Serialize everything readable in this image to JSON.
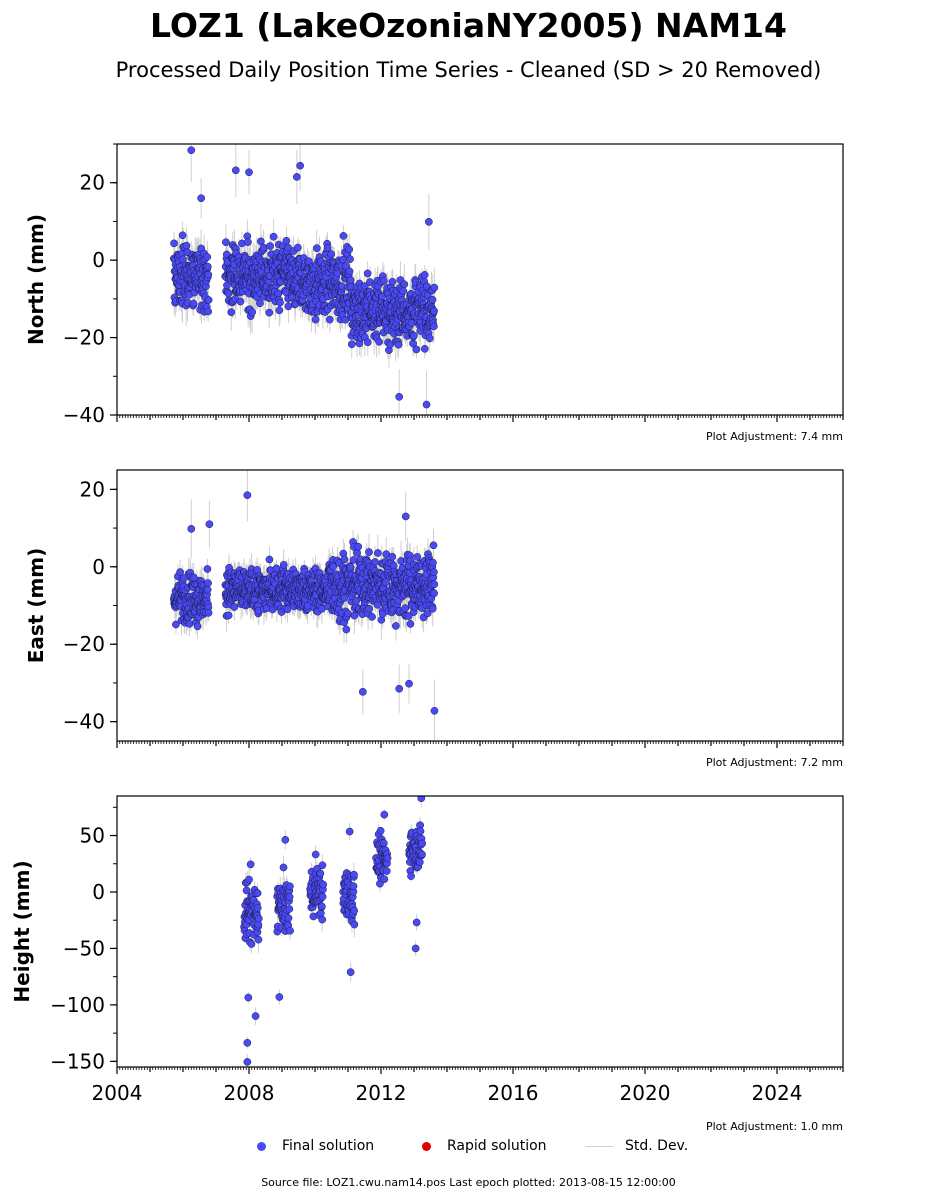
{
  "title": "LOZ1 (LakeOzoniaNY2005) NAM14",
  "subtitle": "Processed Daily Position Time Series - Cleaned (SD > 20 Removed)",
  "footer": "Source file: LOZ1.cwu.nam14.pos  Last epoch plotted: 2013-08-15 12:00:00",
  "legend": {
    "final_label": "Final solution",
    "rapid_label": "Rapid solution",
    "std_label": "Std. Dev.",
    "final_color": "#4a4af5",
    "rapid_color": "#dd0000",
    "std_color": "#cfcfcf"
  },
  "chart_data": [
    {
      "type": "scatter",
      "ylabel": "North (mm)",
      "adjustment": "Plot Adjustment: 7.4 mm",
      "xlim": [
        2004,
        2026
      ],
      "ylim": [
        -40,
        30
      ],
      "yticks": [
        20,
        0,
        -20,
        -40
      ],
      "ytick_labels": [
        "20",
        "0",
        "−20",
        "−40"
      ],
      "series": [
        {
          "segments": [
            {
              "x": [
                2005.72,
                2006.78
              ],
              "mean": -4,
              "spread": 6
            },
            {
              "x": [
                2007.28,
                2009.3
              ],
              "mean": -4,
              "spread": 6
            },
            {
              "x": [
                2009.3,
                2011.1
              ],
              "mean": -6,
              "spread": 6
            },
            {
              "x": [
                2011.1,
                2013.62
              ],
              "mean": -13,
              "spread": 6
            }
          ],
          "outliers": [
            {
              "x": 2006.25,
              "y": 28.4
            },
            {
              "x": 2007.6,
              "y": 23.2
            },
            {
              "x": 2008.0,
              "y": 22.7
            },
            {
              "x": 2009.55,
              "y": 24.4
            },
            {
              "x": 2009.45,
              "y": 21.5
            },
            {
              "x": 2013.45,
              "y": 9.9
            },
            {
              "x": 2013.38,
              "y": -37.3
            },
            {
              "x": 2012.55,
              "y": -35.3
            },
            {
              "x": 2006.55,
              "y": 16.0
            }
          ]
        }
      ]
    },
    {
      "type": "scatter",
      "ylabel": "East (mm)",
      "adjustment": "Plot Adjustment: 7.2 mm",
      "xlim": [
        2004,
        2026
      ],
      "ylim": [
        -45,
        25
      ],
      "yticks": [
        20,
        0,
        -20,
        -40
      ],
      "ytick_labels": [
        "20",
        "0",
        "−20",
        "−40"
      ],
      "series": [
        {
          "segments": [
            {
              "x": [
                2005.72,
                2006.78
              ],
              "mean": -8,
              "spread": 4.5
            },
            {
              "x": [
                2007.28,
                2010.4
              ],
              "mean": -6,
              "spread": 4
            },
            {
              "x": [
                2010.4,
                2013.62
              ],
              "mean": -5,
              "spread": 6
            }
          ],
          "outliers": [
            {
              "x": 2007.95,
              "y": 18.5
            },
            {
              "x": 2006.8,
              "y": 11.0
            },
            {
              "x": 2006.25,
              "y": 9.8
            },
            {
              "x": 2012.75,
              "y": 13.0
            },
            {
              "x": 2013.62,
              "y": -37.2
            },
            {
              "x": 2011.45,
              "y": -32.3
            },
            {
              "x": 2012.85,
              "y": -30.2
            },
            {
              "x": 2012.55,
              "y": -31.5
            }
          ]
        }
      ]
    },
    {
      "type": "scatter",
      "ylabel": "Height (mm)",
      "adjustment": "Plot Adjustment: 1.0 mm",
      "xlim": [
        2004,
        2026
      ],
      "xticks": [
        2004,
        2008,
        2012,
        2016,
        2020,
        2024
      ],
      "xtick_labels": [
        "2004",
        "2008",
        "2012",
        "2016",
        "2020",
        "2024"
      ],
      "ylim": [
        -155,
        85
      ],
      "yticks": [
        50,
        0,
        -50,
        -100,
        -150
      ],
      "ytick_labels": [
        "50",
        "0",
        "−50",
        "−100",
        "−150"
      ],
      "series": [
        {
          "segments": [
            {
              "x": [
                2007.85,
                2008.3
              ],
              "mean": -20,
              "spread": 18
            },
            {
              "x": [
                2008.85,
                2009.25
              ],
              "mean": -12,
              "spread": 18
            },
            {
              "x": [
                2009.85,
                2010.25
              ],
              "mean": 0,
              "spread": 16
            },
            {
              "x": [
                2010.85,
                2011.2
              ],
              "mean": -5,
              "spread": 18
            },
            {
              "x": [
                2011.85,
                2012.2
              ],
              "mean": 28,
              "spread": 14
            },
            {
              "x": [
                2012.85,
                2013.25
              ],
              "mean": 40,
              "spread": 14
            }
          ],
          "outliers": [
            {
              "x": 2007.95,
              "y": -150.5
            },
            {
              "x": 2007.95,
              "y": -133.6
            },
            {
              "x": 2008.2,
              "y": -109.9
            },
            {
              "x": 2007.98,
              "y": -93.5
            },
            {
              "x": 2008.92,
              "y": -93.0
            },
            {
              "x": 2010.02,
              "y": 33.2
            },
            {
              "x": 2009.1,
              "y": 46.2
            },
            {
              "x": 2011.05,
              "y": 53.5
            },
            {
              "x": 2012.1,
              "y": 68.5
            },
            {
              "x": 2013.22,
              "y": 83.0
            },
            {
              "x": 2013.05,
              "y": -50.0
            },
            {
              "x": 2013.08,
              "y": -27.0
            },
            {
              "x": 2011.08,
              "y": -71.0
            },
            {
              "x": 2008.05,
              "y": 24.5
            }
          ]
        }
      ]
    }
  ]
}
